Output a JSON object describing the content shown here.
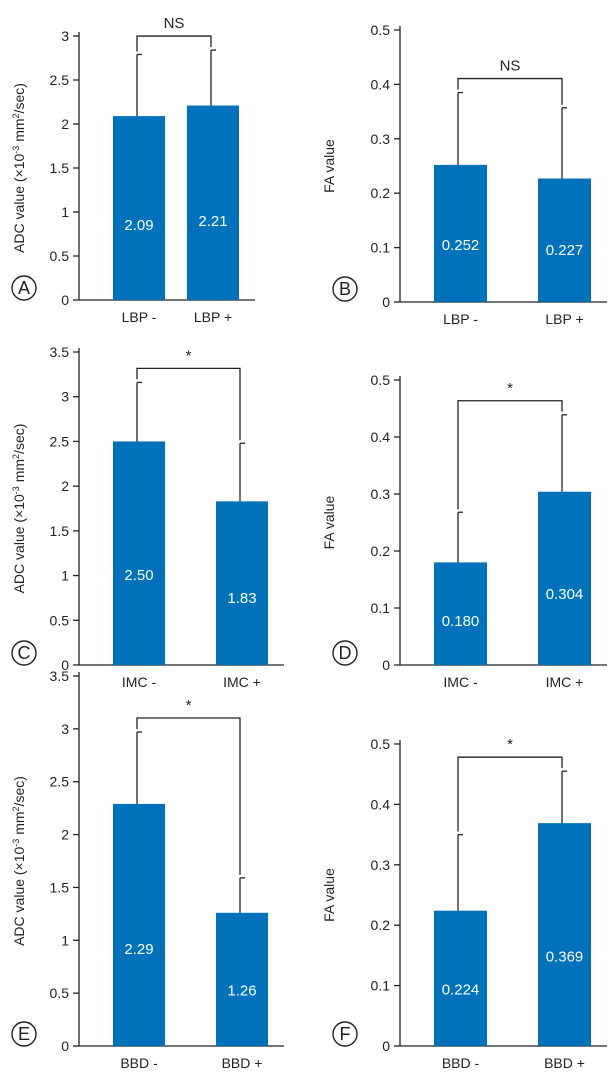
{
  "chart_data": [
    {
      "panel_label": "A",
      "type": "bar",
      "ylabel": "ADC value (×10",
      "ylabel_sup": "-3",
      "ylabel_mid": " mm",
      "ylabel_sup2": "2",
      "ylabel_end": "/sec)",
      "ylim": [
        0,
        3
      ],
      "yticks": [
        "0",
        "0.5",
        "1",
        "1.5",
        "2",
        "2.5",
        "3"
      ],
      "ytick_values": [
        0,
        0.5,
        1,
        1.5,
        2,
        2.5,
        3
      ],
      "categories": [
        "LBP -",
        "LBP +"
      ],
      "values": [
        2.09,
        2.21
      ],
      "errors": [
        0.7,
        0.63
      ],
      "data_labels": [
        "2.09",
        "2.21"
      ],
      "significance": "NS",
      "bar_color": "#0072bc"
    },
    {
      "panel_label": "B",
      "type": "bar",
      "ylabel": "FA value",
      "ylim": [
        0,
        0.5
      ],
      "yticks": [
        "0",
        "0.1",
        "0.2",
        "0.3",
        "0.4",
        "0.5"
      ],
      "ytick_values": [
        0,
        0.1,
        0.2,
        0.3,
        0.4,
        0.5
      ],
      "categories": [
        "LBP -",
        "LBP +"
      ],
      "values": [
        0.252,
        0.227
      ],
      "errors": [
        0.133,
        0.13
      ],
      "data_labels": [
        "0.252",
        "0.227"
      ],
      "significance": "NS",
      "bar_color": "#0072bc"
    },
    {
      "panel_label": "C",
      "type": "bar",
      "ylabel": "ADC value (×10",
      "ylabel_sup": "-3",
      "ylabel_mid": " mm",
      "ylabel_sup2": "2",
      "ylabel_end": "/sec)",
      "ylim": [
        0,
        3.5
      ],
      "yticks": [
        "0",
        "0.5",
        "1",
        "1.5",
        "2",
        "2.5",
        "3",
        "3.5"
      ],
      "ytick_values": [
        0,
        0.5,
        1,
        1.5,
        2,
        2.5,
        3,
        3.5
      ],
      "categories": [
        "IMC -",
        "IMC +"
      ],
      "values": [
        2.5,
        1.83
      ],
      "errors": [
        0.66,
        0.65
      ],
      "data_labels": [
        "2.50",
        "1.83"
      ],
      "significance": "*",
      "bar_color": "#0072bc"
    },
    {
      "panel_label": "D",
      "type": "bar",
      "ylabel": "FA value",
      "ylim": [
        0,
        0.5
      ],
      "yticks": [
        "0",
        "0.1",
        "0.2",
        "0.3",
        "0.4",
        "0.5"
      ],
      "ytick_values": [
        0,
        0.1,
        0.2,
        0.3,
        0.4,
        0.5
      ],
      "categories": [
        "IMC -",
        "IMC +"
      ],
      "values": [
        0.18,
        0.304
      ],
      "errors": [
        0.088,
        0.135
      ],
      "data_labels": [
        "0.180",
        "0.304"
      ],
      "significance": "*",
      "bar_color": "#0072bc"
    },
    {
      "panel_label": "E",
      "type": "bar",
      "ylabel": "ADC value (×10",
      "ylabel_sup": "-3",
      "ylabel_mid": " mm",
      "ylabel_sup2": "2",
      "ylabel_end": "/sec)",
      "ylim": [
        0,
        3.5
      ],
      "yticks": [
        "0",
        "0.5",
        "1",
        "1.5",
        "2",
        "2.5",
        "3",
        "3.5"
      ],
      "ytick_values": [
        0,
        0.5,
        1,
        1.5,
        2,
        2.5,
        3,
        3.5
      ],
      "categories": [
        "BBD -",
        "BBD +"
      ],
      "values": [
        2.29,
        1.26
      ],
      "errors": [
        0.68,
        0.33
      ],
      "data_labels": [
        "2.29",
        "1.26"
      ],
      "significance": "*",
      "bar_color": "#0072bc"
    },
    {
      "panel_label": "F",
      "type": "bar",
      "ylabel": "FA value",
      "ylim": [
        0,
        0.5
      ],
      "yticks": [
        "0",
        "0.1",
        "0.2",
        "0.3",
        "0.4",
        "0.5"
      ],
      "ytick_values": [
        0,
        0.1,
        0.2,
        0.3,
        0.4,
        0.5
      ],
      "categories": [
        "BBD -",
        "BBD +"
      ],
      "values": [
        0.224,
        0.369
      ],
      "errors": [
        0.126,
        0.086
      ],
      "data_labels": [
        "0.224",
        "0.369"
      ],
      "significance": "*",
      "bar_color": "#0072bc"
    }
  ]
}
